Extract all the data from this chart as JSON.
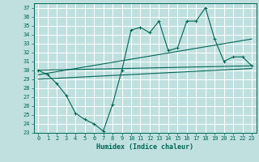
{
  "title": "",
  "xlabel": "Humidex (Indice chaleur)",
  "bg_color": "#c0e0e0",
  "line_color": "#006655",
  "xlim": [
    -0.5,
    23.5
  ],
  "ylim": [
    23,
    37.5
  ],
  "yticks": [
    23,
    24,
    25,
    26,
    27,
    28,
    29,
    30,
    31,
    32,
    33,
    34,
    35,
    36,
    37
  ],
  "xticks": [
    0,
    1,
    2,
    3,
    4,
    5,
    6,
    7,
    8,
    9,
    10,
    11,
    12,
    13,
    14,
    15,
    16,
    17,
    18,
    19,
    20,
    21,
    22,
    23
  ],
  "series1_x": [
    0,
    1,
    2,
    3,
    4,
    5,
    6,
    7,
    8,
    9,
    10,
    11,
    12,
    13,
    14,
    15,
    16,
    17,
    18,
    19,
    20,
    21,
    22,
    23
  ],
  "series1_y": [
    30.0,
    29.5,
    28.5,
    27.2,
    25.2,
    24.5,
    24.0,
    23.2,
    26.2,
    30.0,
    34.5,
    34.8,
    34.2,
    35.5,
    32.2,
    32.5,
    35.5,
    35.5,
    37.0,
    33.5,
    31.0,
    31.5,
    31.5,
    30.5
  ],
  "line1_x": [
    0,
    23
  ],
  "line1_y": [
    30.0,
    30.5
  ],
  "line2_x": [
    0,
    23
  ],
  "line2_y": [
    29.5,
    33.5
  ],
  "line3_x": [
    0,
    23
  ],
  "line3_y": [
    29.0,
    30.2
  ]
}
